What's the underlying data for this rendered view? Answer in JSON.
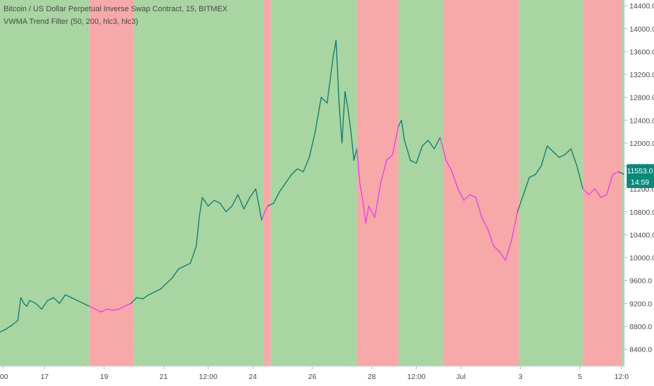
{
  "legend": {
    "symbol_title": "Bitcoin / US Dollar Perpetual Inverse Swap Contract, 15, BITMEX",
    "indicator_title": "VWMA Trend Filter (50, 200, hlc3, hlc3)"
  },
  "price_badge": {
    "value": "11553.0",
    "countdown": "14:59",
    "color": "#0a8a7a"
  },
  "colors": {
    "bull_band": "#a8d5a2",
    "bear_band": "#f7a8a8",
    "bull_line": "#0b7a6e",
    "bear_line": "#e040e8",
    "axis_text": "#4a4a4a",
    "axis_bg": "#ffffff"
  },
  "chart_data": {
    "type": "line",
    "title": "Bitcoin / US Dollar Perpetual Inverse Swap Contract, 15, BITMEX",
    "ylim": [
      8100,
      14500
    ],
    "y_ticks": [
      8400,
      8800,
      9200,
      9600,
      10000,
      10400,
      10800,
      11200,
      11600,
      12000,
      12400,
      12800,
      13200,
      13600,
      14000,
      14400
    ],
    "y_tick_labels": [
      "8400.0",
      "8800.0",
      "9200.0",
      "9600.0",
      "10000.0",
      "10400.0",
      "10800.0",
      "11200.0",
      "11600.0",
      "12000.0",
      "12400.0",
      "12800.0",
      "13200.0",
      "13600.0",
      "14000.0",
      "14400.0"
    ],
    "x_range": [
      0,
      21
    ],
    "x_ticks": [
      0.1,
      1.5,
      3.5,
      5.5,
      7.0,
      8.5,
      10.5,
      12.5,
      14.0,
      15.5,
      17.5,
      19.5,
      20.9
    ],
    "x_tick_labels": [
      ":00",
      "17",
      "19",
      "21",
      "12:00",
      "24",
      "26",
      "28",
      "12:00",
      "Jul",
      "3",
      "5",
      "12:0"
    ],
    "grid": false,
    "background_bands": [
      {
        "start": 0.0,
        "end": 3.0,
        "trend": "bull"
      },
      {
        "start": 3.0,
        "end": 4.5,
        "trend": "bear"
      },
      {
        "start": 4.5,
        "end": 8.85,
        "trend": "bull"
      },
      {
        "start": 8.85,
        "end": 9.1,
        "trend": "bear"
      },
      {
        "start": 9.1,
        "end": 12.0,
        "trend": "bull"
      },
      {
        "start": 12.0,
        "end": 13.4,
        "trend": "bear"
      },
      {
        "start": 13.4,
        "end": 14.9,
        "trend": "bull"
      },
      {
        "start": 14.9,
        "end": 17.45,
        "trend": "bear"
      },
      {
        "start": 17.45,
        "end": 19.6,
        "trend": "bull"
      },
      {
        "start": 19.6,
        "end": 20.9,
        "trend": "bear"
      },
      {
        "start": 20.9,
        "end": 21.0,
        "trend": "bull"
      }
    ],
    "series": [
      {
        "values": [
          [
            0.0,
            8700
          ],
          [
            0.2,
            8750
          ],
          [
            0.4,
            8820
          ],
          [
            0.6,
            8900
          ],
          [
            0.7,
            9300
          ],
          [
            0.8,
            9200
          ],
          [
            0.9,
            9150
          ],
          [
            1.0,
            9250
          ],
          [
            1.2,
            9200
          ],
          [
            1.4,
            9100
          ],
          [
            1.6,
            9250
          ],
          [
            1.8,
            9300
          ],
          [
            2.0,
            9200
          ],
          [
            2.2,
            9350
          ],
          [
            2.4,
            9300
          ],
          [
            2.6,
            9250
          ],
          [
            2.8,
            9200
          ],
          [
            3.0,
            9150
          ],
          [
            3.2,
            9100
          ],
          [
            3.4,
            9050
          ],
          [
            3.6,
            9100
          ],
          [
            3.8,
            9080
          ],
          [
            4.0,
            9100
          ],
          [
            4.2,
            9150
          ],
          [
            4.4,
            9200
          ],
          [
            4.6,
            9300
          ],
          [
            4.8,
            9280
          ],
          [
            5.0,
            9350
          ],
          [
            5.2,
            9400
          ],
          [
            5.4,
            9450
          ],
          [
            5.6,
            9550
          ],
          [
            5.8,
            9650
          ],
          [
            6.0,
            9800
          ],
          [
            6.2,
            9850
          ],
          [
            6.4,
            9900
          ],
          [
            6.6,
            10200
          ],
          [
            6.7,
            10700
          ],
          [
            6.8,
            11050
          ],
          [
            7.0,
            10900
          ],
          [
            7.2,
            11000
          ],
          [
            7.4,
            10950
          ],
          [
            7.6,
            10800
          ],
          [
            7.8,
            10900
          ],
          [
            8.0,
            11100
          ],
          [
            8.2,
            10850
          ],
          [
            8.4,
            11050
          ],
          [
            8.6,
            11200
          ],
          [
            8.8,
            10650
          ],
          [
            8.9,
            10800
          ],
          [
            9.0,
            10900
          ],
          [
            9.2,
            10950
          ],
          [
            9.4,
            11150
          ],
          [
            9.6,
            11300
          ],
          [
            9.8,
            11450
          ],
          [
            10.0,
            11550
          ],
          [
            10.2,
            11500
          ],
          [
            10.4,
            11750
          ],
          [
            10.6,
            12200
          ],
          [
            10.8,
            12800
          ],
          [
            11.0,
            12700
          ],
          [
            11.2,
            13500
          ],
          [
            11.3,
            13800
          ],
          [
            11.4,
            12700
          ],
          [
            11.5,
            12000
          ],
          [
            11.6,
            12900
          ],
          [
            11.7,
            12600
          ],
          [
            11.8,
            12200
          ],
          [
            11.9,
            11700
          ],
          [
            12.0,
            11900
          ],
          [
            12.1,
            11300
          ],
          [
            12.2,
            11000
          ],
          [
            12.3,
            10600
          ],
          [
            12.4,
            10900
          ],
          [
            12.6,
            10700
          ],
          [
            12.8,
            11300
          ],
          [
            13.0,
            11700
          ],
          [
            13.2,
            11800
          ],
          [
            13.4,
            12300
          ],
          [
            13.5,
            12400
          ],
          [
            13.6,
            12050
          ],
          [
            13.8,
            11700
          ],
          [
            14.0,
            11650
          ],
          [
            14.2,
            11950
          ],
          [
            14.4,
            12050
          ],
          [
            14.6,
            11900
          ],
          [
            14.8,
            12100
          ],
          [
            15.0,
            11700
          ],
          [
            15.2,
            11500
          ],
          [
            15.4,
            11200
          ],
          [
            15.6,
            11000
          ],
          [
            15.8,
            11100
          ],
          [
            16.0,
            11050
          ],
          [
            16.2,
            10700
          ],
          [
            16.4,
            10500
          ],
          [
            16.6,
            10200
          ],
          [
            16.8,
            10100
          ],
          [
            17.0,
            9950
          ],
          [
            17.2,
            10300
          ],
          [
            17.4,
            10800
          ],
          [
            17.6,
            11100
          ],
          [
            17.8,
            11400
          ],
          [
            18.0,
            11450
          ],
          [
            18.2,
            11600
          ],
          [
            18.4,
            11950
          ],
          [
            18.6,
            11850
          ],
          [
            18.8,
            11750
          ],
          [
            19.0,
            11800
          ],
          [
            19.2,
            11900
          ],
          [
            19.4,
            11600
          ],
          [
            19.6,
            11200
          ],
          [
            19.8,
            11100
          ],
          [
            20.0,
            11200
          ],
          [
            20.2,
            11050
          ],
          [
            20.4,
            11100
          ],
          [
            20.6,
            11450
          ],
          [
            20.8,
            11500
          ],
          [
            21.0,
            11450
          ]
        ]
      }
    ]
  }
}
